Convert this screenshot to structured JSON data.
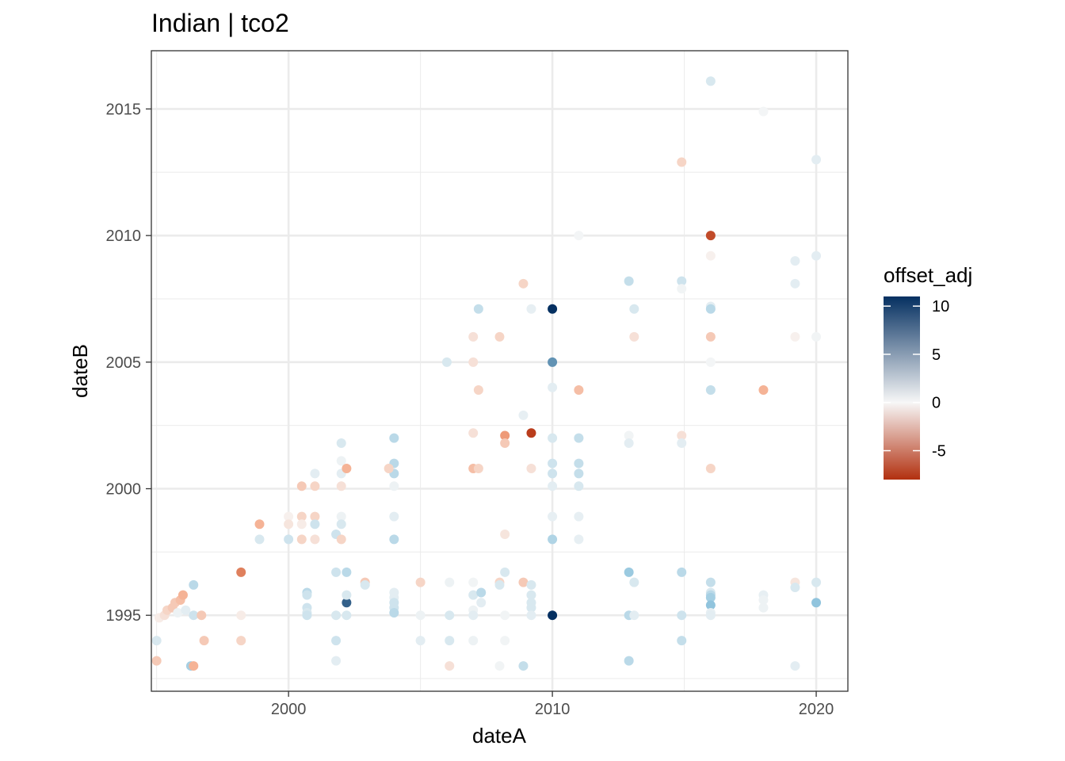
{
  "chart_data": {
    "type": "scatter",
    "title": "Indian | tco2",
    "xlabel": "dateA",
    "ylabel": "dateB",
    "xlim": [
      1994.8,
      2021.2
    ],
    "ylim": [
      1992.0,
      2017.3
    ],
    "x_ticks": [
      2000,
      2010,
      2020
    ],
    "y_ticks": [
      1995,
      2000,
      2005,
      2010,
      2015
    ],
    "x_tick_labels": [
      "2000",
      "2010",
      "2020"
    ],
    "y_tick_labels": [
      "1995",
      "2000",
      "2005",
      "2010",
      "2015"
    ],
    "grid": true,
    "legend": {
      "title": "offset_adj",
      "position": "right",
      "range": [
        -8,
        11
      ],
      "ticks": [
        10,
        5,
        0,
        -5
      ],
      "tick_labels": [
        "10",
        "5",
        "0",
        "-5"
      ],
      "colors": {
        "neg": "#b2300f",
        "mid": "#f7f7f7",
        "pos": "#053061"
      }
    },
    "points": [
      {
        "x": 1995.0,
        "y": 1994.0,
        "c": 1.5
      },
      {
        "x": 1995.0,
        "y": 1993.2,
        "c": -2
      },
      {
        "x": 1995.1,
        "y": 1994.9,
        "c": -0.5
      },
      {
        "x": 1995.3,
        "y": 1995.0,
        "c": -1
      },
      {
        "x": 1995.4,
        "y": 1995.2,
        "c": -1.5
      },
      {
        "x": 1995.6,
        "y": 1995.3,
        "c": -2
      },
      {
        "x": 1995.7,
        "y": 1995.5,
        "c": -2
      },
      {
        "x": 1995.9,
        "y": 1995.6,
        "c": -2.5
      },
      {
        "x": 1996.0,
        "y": 1995.8,
        "c": -3
      },
      {
        "x": 1995.8,
        "y": 1995.1,
        "c": 0.5
      },
      {
        "x": 1996.1,
        "y": 1995.2,
        "c": 1
      },
      {
        "x": 1996.4,
        "y": 1995.0,
        "c": 2
      },
      {
        "x": 1996.4,
        "y": 1996.2,
        "c": 3
      },
      {
        "x": 1996.3,
        "y": 1993.0,
        "c": 4
      },
      {
        "x": 1996.4,
        "y": 1993.0,
        "c": -3
      },
      {
        "x": 1996.7,
        "y": 1995.0,
        "c": -2
      },
      {
        "x": 1996.8,
        "y": 1994.0,
        "c": -2
      },
      {
        "x": 1998.2,
        "y": 1996.7,
        "c": -5
      },
      {
        "x": 1998.2,
        "y": 1995.0,
        "c": -0.5
      },
      {
        "x": 1998.2,
        "y": 1994.0,
        "c": -1.5
      },
      {
        "x": 1998.9,
        "y": 1998.0,
        "c": 1.5
      },
      {
        "x": 1998.9,
        "y": 1998.6,
        "c": -3
      },
      {
        "x": 2000.0,
        "y": 1998.0,
        "c": 2
      },
      {
        "x": 2000.0,
        "y": 1998.9,
        "c": -0.3
      },
      {
        "x": 2000.0,
        "y": 1998.6,
        "c": -0.8
      },
      {
        "x": 2000.5,
        "y": 2000.1,
        "c": -2
      },
      {
        "x": 2000.5,
        "y": 1998.9,
        "c": -1.5
      },
      {
        "x": 2000.5,
        "y": 1998.6,
        "c": -0.5
      },
      {
        "x": 2000.5,
        "y": 1998.0,
        "c": -1.5
      },
      {
        "x": 2000.7,
        "y": 1995.9,
        "c": 3
      },
      {
        "x": 2000.7,
        "y": 1995.8,
        "c": 2
      },
      {
        "x": 2000.7,
        "y": 1995.3,
        "c": 2
      },
      {
        "x": 2000.7,
        "y": 1995.1,
        "c": 1.5
      },
      {
        "x": 2000.7,
        "y": 1995.0,
        "c": 2
      },
      {
        "x": 2001.0,
        "y": 2000.6,
        "c": 1
      },
      {
        "x": 2001.0,
        "y": 2000.1,
        "c": -1.5
      },
      {
        "x": 2001.0,
        "y": 1998.9,
        "c": -1.5
      },
      {
        "x": 2001.0,
        "y": 1998.6,
        "c": 2
      },
      {
        "x": 2001.0,
        "y": 1998.0,
        "c": -1
      },
      {
        "x": 2001.8,
        "y": 1998.2,
        "c": 2
      },
      {
        "x": 2001.8,
        "y": 1996.7,
        "c": 2
      },
      {
        "x": 2001.8,
        "y": 1995.0,
        "c": 1.5
      },
      {
        "x": 2001.8,
        "y": 1994.0,
        "c": 2
      },
      {
        "x": 2001.8,
        "y": 1993.2,
        "c": 1
      },
      {
        "x": 2002.0,
        "y": 2001.8,
        "c": 1.5
      },
      {
        "x": 2002.0,
        "y": 2001.1,
        "c": 0.5
      },
      {
        "x": 2002.0,
        "y": 2000.6,
        "c": 1
      },
      {
        "x": 2002.0,
        "y": 2000.1,
        "c": -1
      },
      {
        "x": 2002.0,
        "y": 1998.9,
        "c": 0.5
      },
      {
        "x": 2002.0,
        "y": 1998.6,
        "c": 1.5
      },
      {
        "x": 2002.0,
        "y": 1998.0,
        "c": -1.5
      },
      {
        "x": 2002.2,
        "y": 2000.8,
        "c": -3
      },
      {
        "x": 2002.2,
        "y": 1996.7,
        "c": 3
      },
      {
        "x": 2002.2,
        "y": 1995.5,
        "c": 9
      },
      {
        "x": 2002.2,
        "y": 1995.8,
        "c": 1.5
      },
      {
        "x": 2002.2,
        "y": 1995.0,
        "c": 1.5
      },
      {
        "x": 2002.9,
        "y": 1996.3,
        "c": -2
      },
      {
        "x": 2002.9,
        "y": 1996.2,
        "c": 1.5
      },
      {
        "x": 2004.0,
        "y": 2002.0,
        "c": 3
      },
      {
        "x": 2004.0,
        "y": 2001.0,
        "c": 3
      },
      {
        "x": 2004.0,
        "y": 2000.6,
        "c": 3
      },
      {
        "x": 2003.8,
        "y": 2000.8,
        "c": -1.5
      },
      {
        "x": 2004.0,
        "y": 2000.1,
        "c": 0.5
      },
      {
        "x": 2004.0,
        "y": 1998.9,
        "c": 1
      },
      {
        "x": 2004.0,
        "y": 1998.0,
        "c": 3
      },
      {
        "x": 2004.0,
        "y": 1995.9,
        "c": 1
      },
      {
        "x": 2004.0,
        "y": 1995.7,
        "c": 1
      },
      {
        "x": 2004.0,
        "y": 1995.5,
        "c": 2
      },
      {
        "x": 2004.0,
        "y": 1995.3,
        "c": 2
      },
      {
        "x": 2004.0,
        "y": 1995.1,
        "c": 3
      },
      {
        "x": 2005.0,
        "y": 1996.3,
        "c": -1.5
      },
      {
        "x": 2005.0,
        "y": 1995.0,
        "c": 0.5
      },
      {
        "x": 2005.0,
        "y": 1994.0,
        "c": 1
      },
      {
        "x": 2006.0,
        "y": 2005.0,
        "c": 1.5
      },
      {
        "x": 2006.1,
        "y": 1996.3,
        "c": 0.5
      },
      {
        "x": 2006.1,
        "y": 1995.0,
        "c": 1.5
      },
      {
        "x": 2006.1,
        "y": 1994.0,
        "c": 1.5
      },
      {
        "x": 2006.1,
        "y": 1993.0,
        "c": -1
      },
      {
        "x": 2007.0,
        "y": 2006.0,
        "c": -1
      },
      {
        "x": 2007.0,
        "y": 2005.0,
        "c": -1
      },
      {
        "x": 2007.0,
        "y": 2002.2,
        "c": -1
      },
      {
        "x": 2007.0,
        "y": 2000.8,
        "c": -2.5
      },
      {
        "x": 2007.0,
        "y": 1996.3,
        "c": 0.3
      },
      {
        "x": 2007.0,
        "y": 1995.8,
        "c": 1.5
      },
      {
        "x": 2007.0,
        "y": 1995.2,
        "c": 0.5
      },
      {
        "x": 2007.0,
        "y": 1995.0,
        "c": 1
      },
      {
        "x": 2007.0,
        "y": 1994.0,
        "c": 0.5
      },
      {
        "x": 2007.2,
        "y": 2007.1,
        "c": 2.5
      },
      {
        "x": 2007.2,
        "y": 2003.9,
        "c": -1.5
      },
      {
        "x": 2007.2,
        "y": 2000.8,
        "c": -1.5
      },
      {
        "x": 2007.3,
        "y": 1995.9,
        "c": 3
      },
      {
        "x": 2007.3,
        "y": 1995.5,
        "c": 1
      },
      {
        "x": 2008.0,
        "y": 2006.0,
        "c": -1.5
      },
      {
        "x": 2008.0,
        "y": 1996.3,
        "c": -1.5
      },
      {
        "x": 2008.0,
        "y": 1996.2,
        "c": 1.5
      },
      {
        "x": 2008.0,
        "y": 1993.0,
        "c": 0.3
      },
      {
        "x": 2008.2,
        "y": 2002.1,
        "c": -4
      },
      {
        "x": 2008.2,
        "y": 2001.8,
        "c": -2
      },
      {
        "x": 2008.2,
        "y": 1998.2,
        "c": -0.8
      },
      {
        "x": 2008.2,
        "y": 1996.7,
        "c": 1.5
      },
      {
        "x": 2008.2,
        "y": 1995.0,
        "c": 0.3
      },
      {
        "x": 2008.2,
        "y": 1994.0,
        "c": 0.3
      },
      {
        "x": 2008.9,
        "y": 2008.1,
        "c": -1.5
      },
      {
        "x": 2008.9,
        "y": 2002.9,
        "c": 0.8
      },
      {
        "x": 2008.9,
        "y": 1996.3,
        "c": -2
      },
      {
        "x": 2008.9,
        "y": 1993.0,
        "c": 2.5
      },
      {
        "x": 2009.2,
        "y": 2007.1,
        "c": 0.8
      },
      {
        "x": 2009.2,
        "y": 2002.2,
        "c": -7.5
      },
      {
        "x": 2009.2,
        "y": 2000.8,
        "c": -1
      },
      {
        "x": 2009.2,
        "y": 1996.2,
        "c": 1.5
      },
      {
        "x": 2009.2,
        "y": 1995.8,
        "c": 1.5
      },
      {
        "x": 2009.2,
        "y": 1995.5,
        "c": 1.5
      },
      {
        "x": 2009.2,
        "y": 1995.3,
        "c": 1.5
      },
      {
        "x": 2009.2,
        "y": 1995.0,
        "c": 1
      },
      {
        "x": 2010.0,
        "y": 2007.1,
        "c": 11
      },
      {
        "x": 2010.0,
        "y": 2005.0,
        "c": 7
      },
      {
        "x": 2010.0,
        "y": 2004.0,
        "c": 1
      },
      {
        "x": 2010.0,
        "y": 2002.0,
        "c": 1.5
      },
      {
        "x": 2010.0,
        "y": 2001.0,
        "c": 2
      },
      {
        "x": 2010.0,
        "y": 2000.6,
        "c": 2
      },
      {
        "x": 2010.0,
        "y": 2000.1,
        "c": 1
      },
      {
        "x": 2010.0,
        "y": 1998.9,
        "c": 0.8
      },
      {
        "x": 2010.0,
        "y": 1998.0,
        "c": 3.5
      },
      {
        "x": 2010.0,
        "y": 1995.0,
        "c": 11
      },
      {
        "x": 2011.0,
        "y": 2010.0,
        "c": 0.2
      },
      {
        "x": 2011.0,
        "y": 2003.9,
        "c": -2.5
      },
      {
        "x": 2011.0,
        "y": 2002.0,
        "c": 2.5
      },
      {
        "x": 2011.0,
        "y": 2001.0,
        "c": 2.5
      },
      {
        "x": 2011.0,
        "y": 2000.6,
        "c": 2.5
      },
      {
        "x": 2011.0,
        "y": 2000.1,
        "c": 1.5
      },
      {
        "x": 2011.0,
        "y": 1998.9,
        "c": 0.8
      },
      {
        "x": 2011.0,
        "y": 1998.0,
        "c": 0.8
      },
      {
        "x": 2012.9,
        "y": 2008.2,
        "c": 2.5
      },
      {
        "x": 2012.9,
        "y": 2002.1,
        "c": 0.3
      },
      {
        "x": 2012.9,
        "y": 2001.8,
        "c": 1
      },
      {
        "x": 2012.9,
        "y": 1996.7,
        "c": 4.5
      },
      {
        "x": 2012.9,
        "y": 1995.0,
        "c": 3
      },
      {
        "x": 2012.9,
        "y": 1993.2,
        "c": 3
      },
      {
        "x": 2013.1,
        "y": 2007.1,
        "c": 1.5
      },
      {
        "x": 2013.1,
        "y": 2006.0,
        "c": -1
      },
      {
        "x": 2013.1,
        "y": 1996.3,
        "c": 1.5
      },
      {
        "x": 2013.1,
        "y": 1995.0,
        "c": 1
      },
      {
        "x": 2014.9,
        "y": 2012.9,
        "c": -1.5
      },
      {
        "x": 2014.9,
        "y": 2008.2,
        "c": 2
      },
      {
        "x": 2014.9,
        "y": 2007.9,
        "c": 0.3
      },
      {
        "x": 2014.9,
        "y": 2002.1,
        "c": -1
      },
      {
        "x": 2014.9,
        "y": 2001.8,
        "c": 1
      },
      {
        "x": 2014.9,
        "y": 1996.7,
        "c": 3
      },
      {
        "x": 2014.9,
        "y": 1995.0,
        "c": 2
      },
      {
        "x": 2014.9,
        "y": 1994.0,
        "c": 2.5
      },
      {
        "x": 2016.0,
        "y": 2016.1,
        "c": 1.5
      },
      {
        "x": 2016.0,
        "y": 2010.0,
        "c": -7
      },
      {
        "x": 2016.0,
        "y": 2009.2,
        "c": -0.3
      },
      {
        "x": 2016.0,
        "y": 2007.2,
        "c": 1
      },
      {
        "x": 2016.0,
        "y": 2007.1,
        "c": 3
      },
      {
        "x": 2016.0,
        "y": 2006.0,
        "c": -2
      },
      {
        "x": 2016.0,
        "y": 2005.0,
        "c": 0.2
      },
      {
        "x": 2016.0,
        "y": 2003.9,
        "c": 2.5
      },
      {
        "x": 2016.0,
        "y": 2000.8,
        "c": -1.5
      },
      {
        "x": 2016.0,
        "y": 1996.3,
        "c": 2.5
      },
      {
        "x": 2016.0,
        "y": 1995.9,
        "c": 1.5
      },
      {
        "x": 2016.0,
        "y": 1995.8,
        "c": 3
      },
      {
        "x": 2016.0,
        "y": 1995.7,
        "c": 4
      },
      {
        "x": 2016.0,
        "y": 1995.4,
        "c": 5
      },
      {
        "x": 2016.0,
        "y": 1995.1,
        "c": 0.8
      },
      {
        "x": 2016.0,
        "y": 1995.0,
        "c": 1
      },
      {
        "x": 2018.0,
        "y": 2014.9,
        "c": 0.2
      },
      {
        "x": 2018.0,
        "y": 2003.9,
        "c": -3
      },
      {
        "x": 2018.0,
        "y": 1995.8,
        "c": 0.8
      },
      {
        "x": 2018.0,
        "y": 1995.6,
        "c": 0.5
      },
      {
        "x": 2018.0,
        "y": 1995.3,
        "c": 0.5
      },
      {
        "x": 2019.2,
        "y": 2009.0,
        "c": 1
      },
      {
        "x": 2019.2,
        "y": 2008.1,
        "c": 1
      },
      {
        "x": 2019.2,
        "y": 2006.0,
        "c": -0.3
      },
      {
        "x": 2019.2,
        "y": 1996.3,
        "c": -0.8
      },
      {
        "x": 2019.2,
        "y": 1996.1,
        "c": 1.5
      },
      {
        "x": 2019.2,
        "y": 1993.0,
        "c": 1
      },
      {
        "x": 2020.0,
        "y": 2013.0,
        "c": 1
      },
      {
        "x": 2020.0,
        "y": 2009.2,
        "c": 1
      },
      {
        "x": 2020.0,
        "y": 2006.0,
        "c": 0.3
      },
      {
        "x": 2020.0,
        "y": 1996.3,
        "c": 1.5
      },
      {
        "x": 2020.0,
        "y": 1995.5,
        "c": 5
      }
    ]
  }
}
